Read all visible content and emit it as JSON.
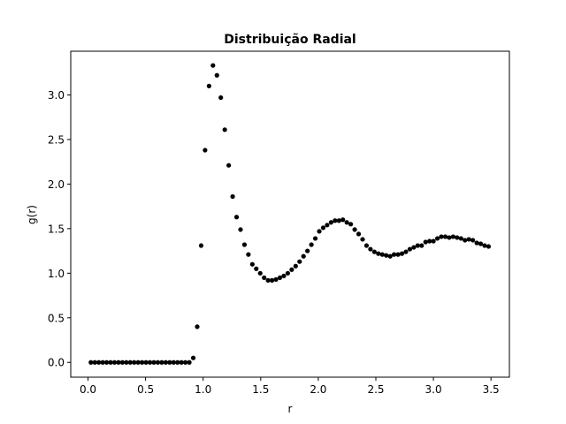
{
  "chart_data": {
    "type": "scatter",
    "title": "Distribuição Radial",
    "xlabel": "r",
    "ylabel": "g(r)",
    "xlim": [
      -0.15,
      3.66
    ],
    "ylim": [
      -0.166,
      3.49
    ],
    "xticks": [
      0.0,
      0.5,
      1.0,
      1.5,
      2.0,
      2.5,
      3.0,
      3.5
    ],
    "xtick_labels": [
      "0.0",
      "0.5",
      "1.0",
      "1.5",
      "2.0",
      "2.5",
      "3.0",
      "3.5"
    ],
    "yticks": [
      0.0,
      0.5,
      1.0,
      1.5,
      2.0,
      2.5,
      3.0
    ],
    "ytick_labels": [
      "0.0",
      "0.5",
      "1.0",
      "1.5",
      "2.0",
      "2.5",
      "3.0"
    ],
    "grid": false,
    "legend": false,
    "marker_color": "#000000",
    "series": [
      {
        "x": [
          0.025,
          0.0592,
          0.0934,
          0.1276,
          0.1618,
          0.196,
          0.2302,
          0.2644,
          0.2986,
          0.3328,
          0.367,
          0.4012,
          0.4354,
          0.4696,
          0.5038,
          0.538,
          0.5722,
          0.6064,
          0.6406,
          0.6748,
          0.709,
          0.7432,
          0.7774,
          0.8116,
          0.8458,
          0.88,
          0.9142,
          0.9484,
          0.9826,
          1.0168,
          1.051,
          1.0852,
          1.1194,
          1.1536,
          1.1878,
          1.222,
          1.2562,
          1.2904,
          1.3246,
          1.3588,
          1.393,
          1.4272,
          1.4614,
          1.4956,
          1.5298,
          1.564,
          1.5982,
          1.6324,
          1.6666,
          1.7008,
          1.735,
          1.7692,
          1.8034,
          1.8376,
          1.8718,
          1.906,
          1.9402,
          1.9744,
          2.0086,
          2.0428,
          2.077,
          2.1112,
          2.1454,
          2.1796,
          2.2138,
          2.248,
          2.2822,
          2.3164,
          2.3506,
          2.3848,
          2.419,
          2.4532,
          2.4874,
          2.5216,
          2.5558,
          2.59,
          2.6242,
          2.6584,
          2.6926,
          2.7268,
          2.761,
          2.7952,
          2.8294,
          2.8636,
          2.8978,
          2.932,
          2.9662,
          3.0004,
          3.0346,
          3.0688,
          3.103,
          3.1372,
          3.1714,
          3.2056,
          3.2398,
          3.274,
          3.3082,
          3.3424,
          3.3766,
          3.4108,
          3.445,
          3.4792
        ],
        "y": [
          0,
          0,
          0,
          0,
          0,
          0,
          0,
          0,
          0,
          0,
          0,
          0,
          0,
          0,
          0,
          0,
          0,
          0,
          0,
          0,
          0,
          0,
          0,
          0,
          0,
          0,
          0.05,
          0.4,
          1.31,
          2.38,
          3.1,
          3.33,
          3.22,
          2.97,
          2.61,
          2.21,
          1.86,
          1.63,
          1.49,
          1.32,
          1.21,
          1.1,
          1.05,
          1.0,
          0.95,
          0.92,
          0.92,
          0.93,
          0.95,
          0.97,
          1.0,
          1.04,
          1.08,
          1.13,
          1.19,
          1.25,
          1.32,
          1.39,
          1.47,
          1.51,
          1.54,
          1.57,
          1.59,
          1.59,
          1.6,
          1.57,
          1.55,
          1.49,
          1.44,
          1.38,
          1.31,
          1.27,
          1.24,
          1.22,
          1.21,
          1.2,
          1.19,
          1.21,
          1.21,
          1.22,
          1.24,
          1.27,
          1.29,
          1.31,
          1.31,
          1.35,
          1.36,
          1.36,
          1.39,
          1.41,
          1.41,
          1.4,
          1.41,
          1.4,
          1.39,
          1.37,
          1.38,
          1.37,
          1.34,
          1.33,
          1.31,
          1.3
        ]
      }
    ]
  }
}
